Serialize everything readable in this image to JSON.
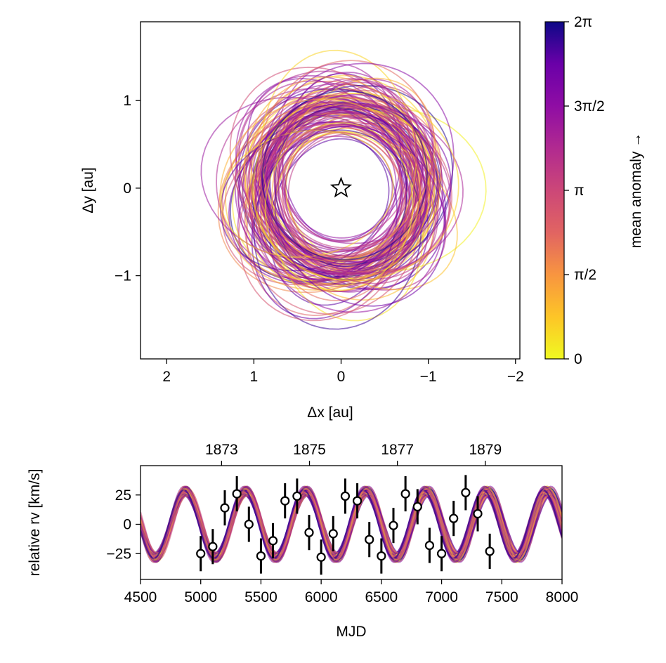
{
  "chart_data": [
    {
      "type": "orbit-plot",
      "xlabel": "Δx [au]",
      "ylabel": "Δy [au]",
      "xlim": [
        2.3,
        -2.05
      ],
      "ylim": [
        -1.95,
        1.9
      ],
      "xticks": [
        2,
        1,
        0,
        -1,
        -2
      ],
      "xtick_labels": [
        "2",
        "1",
        "0",
        "−1",
        "−2"
      ],
      "yticks": [
        1,
        0,
        -1
      ],
      "ytick_labels": [
        "1",
        "0",
        "−1"
      ],
      "star": {
        "x": 0,
        "y": 0,
        "marker": "star"
      },
      "orbit_count": 120,
      "orbit_semi_major_range": [
        0.9,
        1.2
      ],
      "orbit_eccentricity_range": [
        0.0,
        0.45
      ],
      "colormap": "plasma"
    },
    {
      "type": "colorbar",
      "label": "mean anomaly →",
      "range": [
        0,
        6.2832
      ],
      "ticks": [
        0,
        1.5708,
        3.1416,
        4.7124,
        6.2832
      ],
      "tick_labels": [
        "0",
        "π/2",
        "π",
        "3π/2",
        "2π"
      ],
      "colormap": "plasma"
    },
    {
      "type": "line",
      "xlabel": "MJD",
      "ylabel": "relative rv [km/s]",
      "xlim": [
        4500,
        8000
      ],
      "ylim": [
        -47,
        50
      ],
      "xticks": [
        4500,
        5000,
        5500,
        6000,
        6500,
        7000,
        7500,
        8000
      ],
      "xtick_labels": [
        "4500",
        "5000",
        "5500",
        "6000",
        "6500",
        "7000",
        "7500",
        "8000"
      ],
      "yticks": [
        25,
        0,
        -25
      ],
      "ytick_labels": [
        "25",
        "0",
        "−25"
      ],
      "top_axis": {
        "ticks_mjd": [
          5173,
          5903,
          6633,
          7363
        ],
        "tick_labels": [
          "1873",
          "1875",
          "1877",
          "1879"
        ]
      },
      "model": {
        "period": 500,
        "amplitude": 27,
        "phase_zero_mjd": 5375,
        "curve_count": 70
      },
      "observations": {
        "x": [
          5000,
          5100,
          5200,
          5300,
          5400,
          5500,
          5600,
          5700,
          5800,
          5900,
          6000,
          6100,
          6200,
          6300,
          6400,
          6500,
          6600,
          6700,
          6800,
          6900,
          7000,
          7100,
          7200,
          7300,
          7400
        ],
        "y": [
          -25,
          -19,
          14,
          26,
          0,
          -27,
          -14,
          20,
          24,
          -7,
          -28,
          -8,
          24,
          20,
          -13,
          -27,
          -1,
          26,
          15,
          -18,
          -25,
          5,
          27,
          9,
          -23
        ],
        "err": [
          15,
          15,
          15,
          15,
          15,
          15,
          15,
          15,
          15,
          15,
          15,
          15,
          15,
          15,
          15,
          15,
          15,
          15,
          15,
          15,
          15,
          15,
          15,
          15,
          15
        ]
      }
    }
  ]
}
